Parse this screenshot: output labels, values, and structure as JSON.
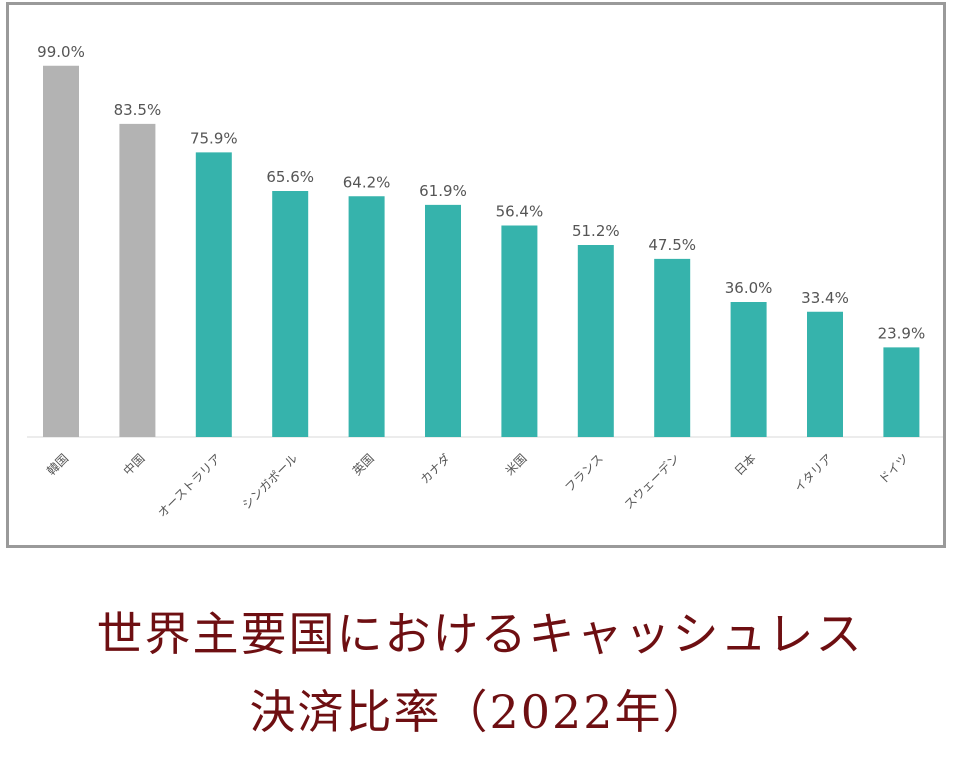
{
  "chart_data": {
    "type": "bar",
    "categories": [
      "韓国",
      "中国",
      "オーストラリア",
      "シンガポール",
      "英国",
      "カナダ",
      "米国",
      "フランス",
      "スウェーデン",
      "日本",
      "イタリア",
      "ドイツ"
    ],
    "values": [
      99.0,
      83.5,
      75.9,
      65.6,
      64.2,
      61.9,
      56.4,
      51.2,
      47.5,
      36.0,
      33.4,
      23.9
    ],
    "value_labels": [
      "99.0%",
      "83.5%",
      "75.9%",
      "65.6%",
      "64.2%",
      "61.9%",
      "56.4%",
      "51.2%",
      "47.5%",
      "36.0%",
      "33.4%",
      "23.9%"
    ],
    "unit": "%",
    "ylim": [
      0,
      100
    ],
    "grid": false,
    "colors": {
      "highlight": "#b3b3b3",
      "default": "#36b3ac",
      "label": "#555555",
      "baseline": "#e6e6e6"
    },
    "highlighted_categories": [
      "韓国",
      "中国"
    ]
  },
  "title": {
    "line1": "世界主要国におけるキャッシュレス",
    "line2": "決済比率（2022年）"
  }
}
